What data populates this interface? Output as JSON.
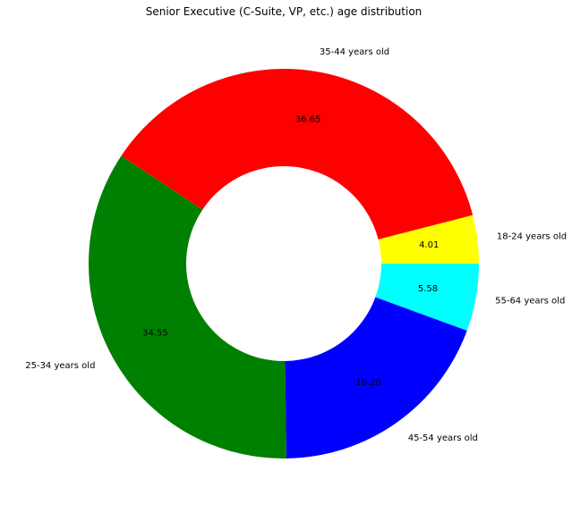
{
  "chart_data": {
    "type": "pie",
    "donut": true,
    "title": "Senior Executive (C-Suite, VP, etc.) age distribution",
    "start_angle_deg": 0,
    "direction": "counterclockwise",
    "slices": [
      {
        "label": "18-24 years old",
        "value": 4.01,
        "value_text": "4.01",
        "color": "#ffff00"
      },
      {
        "label": "35-44 years old",
        "value": 36.65,
        "value_text": "36.65",
        "color": "#ff0000"
      },
      {
        "label": "25-34 years old",
        "value": 34.55,
        "value_text": "34.55",
        "color": "#008000"
      },
      {
        "label": "45-54 years old",
        "value": 19.2,
        "value_text": "19.20",
        "color": "#0000ff"
      },
      {
        "label": "55-64 years old",
        "value": 5.58,
        "value_text": "5.58",
        "color": "#00ffff"
      }
    ]
  }
}
